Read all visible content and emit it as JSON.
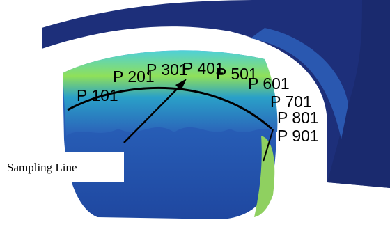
{
  "labels": [
    "P 101",
    "P 201",
    "P 301",
    "P 401",
    "P 501",
    "P 601",
    "P 701",
    "P 801",
    "P 901"
  ],
  "annotation": "Sampling Line"
}
